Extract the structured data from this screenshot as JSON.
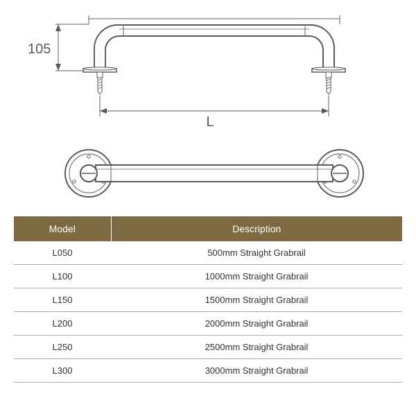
{
  "diagram": {
    "height_label": "105",
    "length_label": "L",
    "stroke": "#5b5b5b",
    "stroke_thin": "#808080",
    "fill_light": "#ffffff",
    "dim_fontsize": 20,
    "dim_color": "#5b5b5b"
  },
  "table": {
    "header_bg": "#7d6a42",
    "header_fg": "#ffffff",
    "row_border": "#a9a9a9",
    "text_color": "#333333",
    "columns": [
      "Model",
      "Description"
    ],
    "rows": [
      [
        "L050",
        "500mm Straight Grabrail"
      ],
      [
        "L100",
        "1000mm Straight Grabrail"
      ],
      [
        "L150",
        "1500mm Straight Grabrail"
      ],
      [
        "L200",
        "2000mm Straight Grabrail"
      ],
      [
        "L250",
        "2500mm Straight Grabrail"
      ],
      [
        "L300",
        "3000mm Straight Grabrail"
      ]
    ]
  }
}
